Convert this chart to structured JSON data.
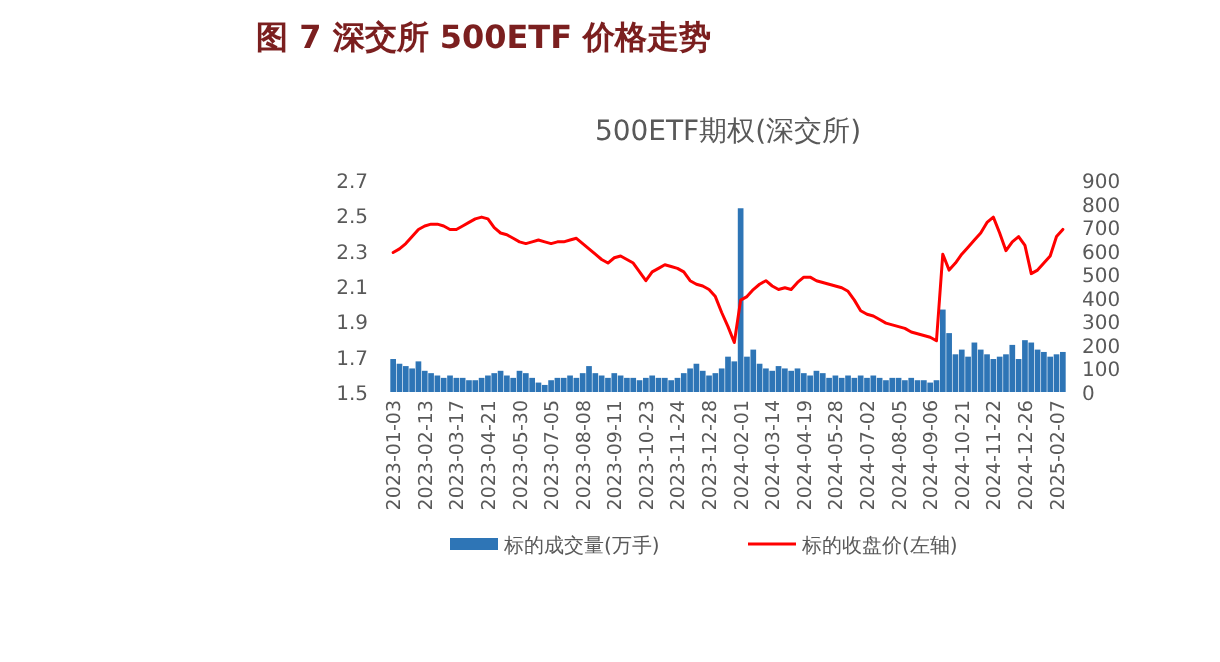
{
  "chart_data": {
    "type": "bar",
    "title": "图 7 深交所 500ETF 价格走势",
    "subtitle": "500ETF期权(深交所)",
    "categories": [
      "2023-01-03",
      null,
      null,
      null,
      null,
      "2023-02-13",
      null,
      null,
      null,
      null,
      "2023-03-17",
      null,
      null,
      null,
      null,
      "2023-04-21",
      null,
      null,
      null,
      null,
      "2023-05-30",
      null,
      null,
      null,
      null,
      "2023-07-05",
      null,
      null,
      null,
      null,
      "2023-08-08",
      null,
      null,
      null,
      null,
      "2023-09-11",
      null,
      null,
      null,
      null,
      "2023-10-23",
      null,
      null,
      null,
      null,
      "2023-11-24",
      null,
      null,
      null,
      null,
      "2023-12-28",
      null,
      null,
      null,
      null,
      "2024-02-01",
      null,
      null,
      null,
      null,
      "2024-03-14",
      null,
      null,
      null,
      null,
      "2024-04-19",
      null,
      null,
      null,
      null,
      "2024-05-28",
      null,
      null,
      null,
      null,
      "2024-07-02",
      null,
      null,
      null,
      null,
      "2024-08-05",
      null,
      null,
      null,
      null,
      "2024-09-06",
      null,
      null,
      null,
      null,
      "2024-10-21",
      null,
      null,
      null,
      null,
      "2024-11-22",
      null,
      null,
      null,
      null,
      "2024-12-26",
      null,
      null,
      null,
      null,
      "2025-02-07",
      null
    ],
    "series": [
      {
        "name": "标的成交量(万手)",
        "axis": "y2",
        "color": "#2e75b6",
        "values": [
          140,
          120,
          110,
          100,
          130,
          90,
          80,
          70,
          60,
          70,
          60,
          60,
          50,
          50,
          60,
          70,
          80,
          90,
          70,
          60,
          90,
          80,
          60,
          40,
          30,
          50,
          60,
          60,
          70,
          60,
          80,
          110,
          80,
          70,
          60,
          80,
          70,
          60,
          60,
          50,
          60,
          70,
          60,
          60,
          50,
          60,
          80,
          100,
          120,
          90,
          70,
          80,
          100,
          150,
          130,
          780,
          150,
          180,
          120,
          100,
          90,
          110,
          100,
          90,
          100,
          80,
          70,
          90,
          80,
          60,
          70,
          60,
          70,
          60,
          70,
          60,
          70,
          60,
          50,
          60,
          60,
          50,
          60,
          50,
          50,
          40,
          50,
          350,
          250,
          160,
          180,
          150,
          210,
          180,
          160,
          140,
          150,
          160,
          200,
          140,
          220,
          210,
          180,
          170,
          150,
          160,
          170
        ]
      },
      {
        "name": "标的收盘价(左轴)",
        "type": "line",
        "axis": "y",
        "color": "#ff0000",
        "values": [
          2.29,
          2.31,
          2.34,
          2.38,
          2.42,
          2.44,
          2.45,
          2.45,
          2.44,
          2.42,
          2.42,
          2.44,
          2.46,
          2.48,
          2.49,
          2.48,
          2.43,
          2.4,
          2.39,
          2.37,
          2.35,
          2.34,
          2.35,
          2.36,
          2.35,
          2.34,
          2.35,
          2.35,
          2.36,
          2.37,
          2.34,
          2.31,
          2.28,
          2.25,
          2.23,
          2.26,
          2.27,
          2.25,
          2.23,
          2.18,
          2.13,
          2.18,
          2.2,
          2.22,
          2.21,
          2.2,
          2.18,
          2.13,
          2.11,
          2.1,
          2.08,
          2.04,
          1.95,
          1.87,
          1.78,
          2.02,
          2.04,
          2.08,
          2.11,
          2.13,
          2.1,
          2.08,
          2.09,
          2.08,
          2.12,
          2.15,
          2.15,
          2.13,
          2.12,
          2.11,
          2.1,
          2.09,
          2.07,
          2.02,
          1.96,
          1.94,
          1.93,
          1.91,
          1.89,
          1.88,
          1.87,
          1.86,
          1.84,
          1.83,
          1.82,
          1.81,
          1.79,
          2.28,
          2.19,
          2.23,
          2.28,
          2.32,
          2.36,
          2.4,
          2.46,
          2.49,
          2.4,
          2.3,
          2.35,
          2.38,
          2.33,
          2.17,
          2.19,
          2.23,
          2.27,
          2.38,
          2.42
        ]
      }
    ],
    "ylim": [
      1.5,
      2.7
    ],
    "yticks": [
      {
        "value": 1.5,
        "label": "1.5"
      },
      1.7,
      1.9,
      2.1,
      2.3,
      2.5,
      2.7
    ],
    "y2lim": [
      0,
      900
    ],
    "y2ticks": [
      0,
      100,
      200,
      300,
      400,
      500,
      600,
      700,
      800,
      900
    ],
    "legend": "bottom"
  }
}
